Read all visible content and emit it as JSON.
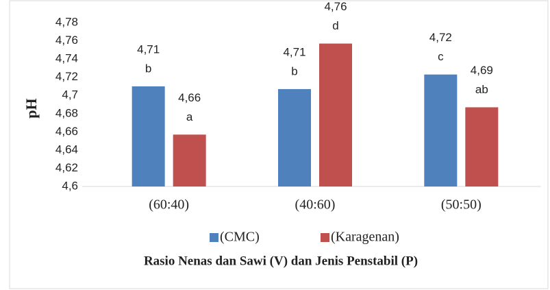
{
  "chart_data": {
    "type": "bar",
    "y_label": "pH",
    "x_label": "Rasio Nenas dan Sawi (V) dan Jenis Penstabil (P)",
    "categories": [
      "(60:40)",
      "(40:60)",
      "(50:50)"
    ],
    "series": [
      {
        "name": "(CMC)",
        "color": "#4f81bd",
        "values": [
          4.71,
          4.707,
          4.723
        ],
        "value_labels": [
          "4,71",
          "4,71",
          "4,72"
        ],
        "letters": [
          "b",
          "b",
          "c"
        ]
      },
      {
        "name": "(Karagenan)",
        "color": "#c0504d",
        "values": [
          4.657,
          4.757,
          4.687
        ],
        "value_labels": [
          "4,66",
          "4,76",
          "4,69"
        ],
        "letters": [
          "a",
          "d",
          "ab"
        ]
      }
    ],
    "ylim": [
      4.6,
      4.78
    ],
    "yticks": [
      {
        "value": 4.6,
        "label": "4,6"
      },
      {
        "value": 4.62,
        "label": "4,62"
      },
      {
        "value": 4.64,
        "label": "4,64"
      },
      {
        "value": 4.66,
        "label": "4,66"
      },
      {
        "value": 4.68,
        "label": "4,68"
      },
      {
        "value": 4.7,
        "label": "4,7"
      },
      {
        "value": 4.72,
        "label": "4,72"
      },
      {
        "value": 4.74,
        "label": "4,74"
      },
      {
        "value": 4.76,
        "label": "4,76"
      },
      {
        "value": 4.78,
        "label": "4,78"
      }
    ],
    "grid": false
  }
}
